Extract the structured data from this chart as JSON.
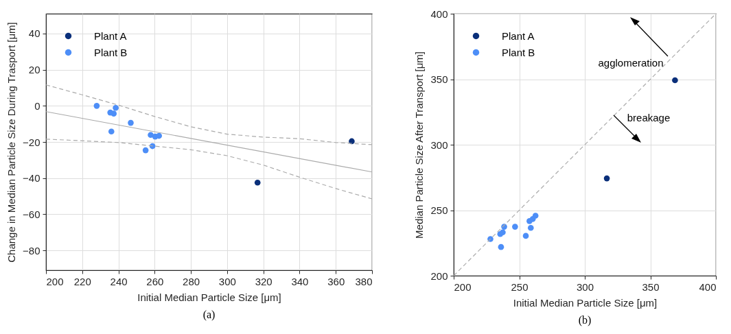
{
  "chart_data": [
    {
      "type": "scatter",
      "xlabel": "Initial Median Particle Size [μm]",
      "ylabel": "Change in Median Particle Size During Trasport [μm]",
      "xlim": [
        200,
        380
      ],
      "ylim": [
        -91,
        51
      ],
      "xticks": [
        200,
        220,
        240,
        260,
        280,
        300,
        320,
        340,
        360,
        380
      ],
      "yticks": [
        -80,
        -60,
        -40,
        -20,
        0,
        20,
        40
      ],
      "grid": true,
      "legend": "top left",
      "annotations": [
        "(a)"
      ],
      "series": [
        {
          "name": "Plant A",
          "color": "#0a2f7a",
          "marker": "circle",
          "x": [
            316.8,
            368.8
          ],
          "values": [
            -42.5,
            -19.6
          ]
        },
        {
          "name": "Plant B",
          "color": "#4d8ef7",
          "marker": "circle",
          "x": [
            228.0,
            235.5,
            237.4,
            238.5,
            246.8,
            236.1,
            257.8,
            260.3,
            262.4,
            258.8,
            255.0
          ],
          "values": [
            0,
            -3.7,
            -4.3,
            -1.1,
            -9.4,
            -14.2,
            -16.1,
            -17.0,
            -16.6,
            -22.3,
            -24.6
          ]
        },
        {
          "type": "line",
          "color": "#aaaaaa",
          "line_style": "solid",
          "x": [
            200,
            380
          ],
          "values": [
            -3.2,
            -36.6
          ]
        },
        {
          "type": "line",
          "color": "#aaaaaa",
          "line_style": "dashed",
          "x": [
            200,
            220,
            240,
            260,
            280,
            300,
            320,
            340,
            360,
            380
          ],
          "values": [
            11.6,
            6.1,
            0.4,
            -5.9,
            -11.6,
            -15.7,
            -17.3,
            -18.2,
            -20.3,
            -21.5
          ]
        },
        {
          "type": "line",
          "color": "#aaaaaa",
          "line_style": "dashed",
          "x": [
            200,
            240,
            280,
            300,
            320,
            340,
            360,
            380
          ],
          "values": [
            -18.4,
            -20.3,
            -24.3,
            -27.6,
            -32.8,
            -39.5,
            -45.8,
            -51.5
          ]
        }
      ]
    },
    {
      "type": "scatter",
      "xlabel": "Initial Median Particle Size [μm]",
      "ylabel": "Median Particle Size After Transport [μm]",
      "xlim": [
        200,
        400
      ],
      "ylim": [
        200,
        400
      ],
      "xticks": [
        200,
        250,
        300,
        350,
        400
      ],
      "yticks": [
        200,
        250,
        300,
        350,
        400
      ],
      "grid": true,
      "legend": "top left",
      "annotations": [
        "agglomeration",
        "breakage",
        "(b)"
      ],
      "series": [
        {
          "name": "Plant A",
          "color": "#0a2f7a",
          "marker": "circle",
          "x": [
            316.8,
            368.8
          ],
          "values": [
            274.3,
            349.2
          ]
        },
        {
          "name": "Plant B",
          "color": "#4d8ef7",
          "marker": "circle",
          "x": [
            228.0,
            235.5,
            237.4,
            238.5,
            246.8,
            236.1,
            257.8,
            260.3,
            262.4,
            258.8,
            255.0
          ],
          "values": [
            228.0,
            231.8,
            233.1,
            237.4,
            237.4,
            221.9,
            241.7,
            243.3,
            245.8,
            236.5,
            230.4
          ]
        },
        {
          "type": "line",
          "color": "#aaaaaa",
          "line_style": "dashed",
          "x": [
            200,
            400
          ],
          "values": [
            200,
            400
          ]
        }
      ]
    }
  ]
}
